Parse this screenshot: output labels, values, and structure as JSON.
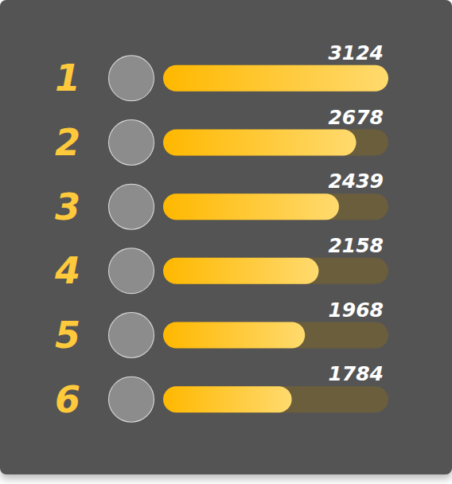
{
  "chart_data": {
    "type": "bar",
    "orientation": "horizontal",
    "categories": [
      "1",
      "2",
      "3",
      "4",
      "5",
      "6"
    ],
    "values": [
      3124,
      2678,
      2439,
      2158,
      1968,
      1784
    ],
    "color": "#ffb800",
    "xlim": [
      0,
      3124
    ],
    "grid": false,
    "data_labels": true,
    "tick_labels": "y"
  }
}
